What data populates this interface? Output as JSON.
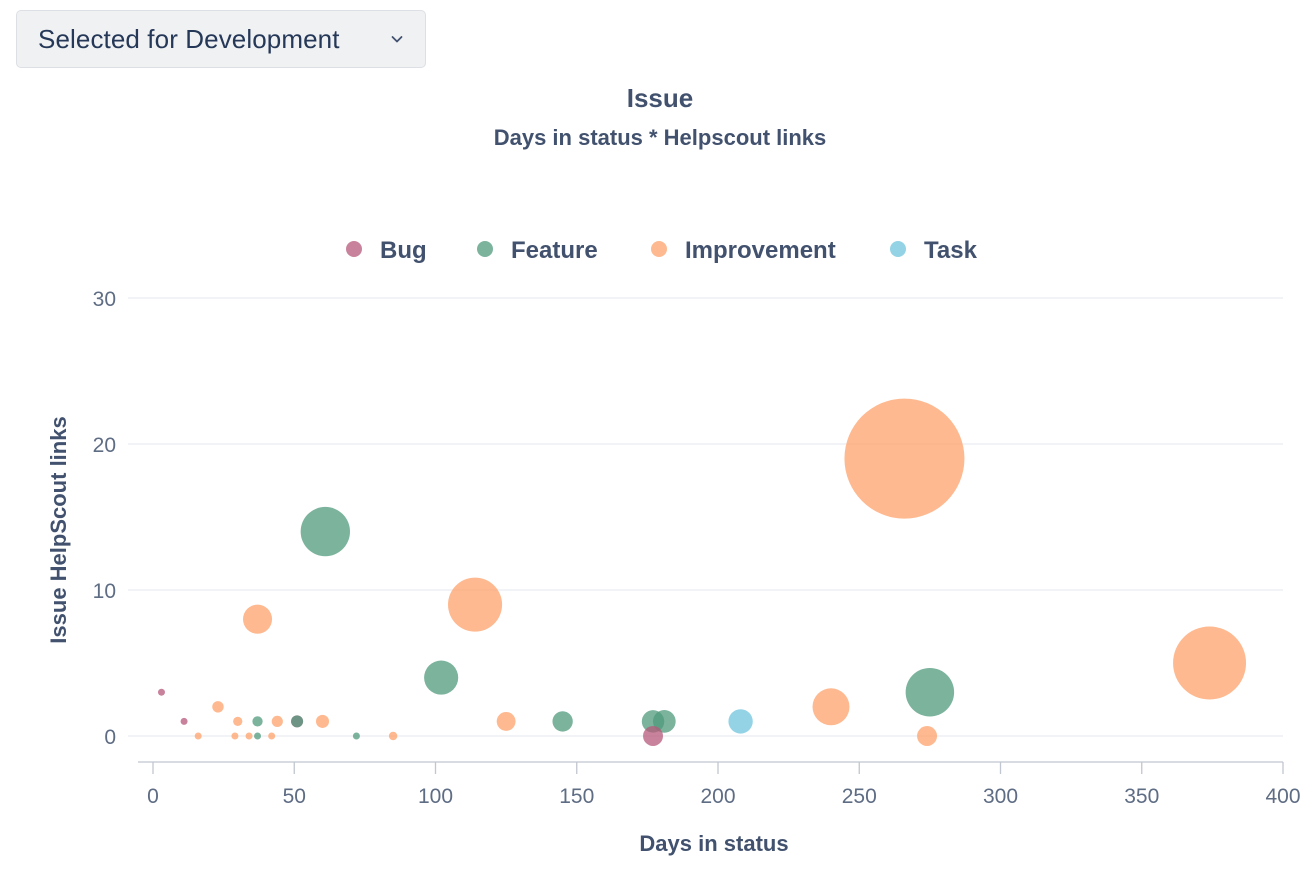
{
  "dropdown": {
    "selected_value": "Selected for Development",
    "icon": "chevron-down-icon"
  },
  "chart_data": {
    "type": "scatter",
    "title": "Issue",
    "subtitle": "Days in status * Helpscout links",
    "xlabel": "Days in status",
    "ylabel": "Issue HelpScout links",
    "xlim": [
      0,
      400
    ],
    "ylim": [
      0,
      30
    ],
    "x_ticks": [
      "0",
      "50",
      "100",
      "150",
      "200",
      "250",
      "300",
      "350",
      "400"
    ],
    "y_ticks": [
      "0",
      "10",
      "20",
      "30"
    ],
    "grid": "horizontal",
    "legend_position": "top-center",
    "bubble_size_metric": "Days in status * Helpscout links",
    "series": [
      {
        "name": "Bug",
        "color": "#b6587a",
        "points": [
          {
            "x": 3,
            "y": 3,
            "size": 9
          },
          {
            "x": 11,
            "y": 1,
            "size": 11
          },
          {
            "x": 51,
            "y": 1,
            "size": 51
          },
          {
            "x": 177,
            "y": 0,
            "size": 140
          }
        ]
      },
      {
        "name": "Feature",
        "color": "#4f9a7c",
        "points": [
          {
            "x": 37,
            "y": 1,
            "size": 37
          },
          {
            "x": 37,
            "y": 0,
            "size": 6
          },
          {
            "x": 51,
            "y": 1,
            "size": 51
          },
          {
            "x": 61,
            "y": 14,
            "size": 854
          },
          {
            "x": 72,
            "y": 0,
            "size": 10
          },
          {
            "x": 102,
            "y": 4,
            "size": 408
          },
          {
            "x": 145,
            "y": 1,
            "size": 145
          },
          {
            "x": 177,
            "y": 1,
            "size": 177
          },
          {
            "x": 181,
            "y": 1,
            "size": 181
          },
          {
            "x": 275,
            "y": 3,
            "size": 825
          }
        ]
      },
      {
        "name": "Improvement",
        "color": "#fea26b",
        "points": [
          {
            "x": 16,
            "y": 0,
            "size": 3
          },
          {
            "x": 23,
            "y": 2,
            "size": 46
          },
          {
            "x": 29,
            "y": 0,
            "size": 4
          },
          {
            "x": 30,
            "y": 1,
            "size": 30
          },
          {
            "x": 34,
            "y": 0,
            "size": 4
          },
          {
            "x": 37,
            "y": 8,
            "size": 296
          },
          {
            "x": 42,
            "y": 0,
            "size": 5
          },
          {
            "x": 44,
            "y": 1,
            "size": 44
          },
          {
            "x": 60,
            "y": 1,
            "size": 60
          },
          {
            "x": 85,
            "y": 0,
            "size": 25
          },
          {
            "x": 114,
            "y": 9,
            "size": 1026
          },
          {
            "x": 125,
            "y": 1,
            "size": 125
          },
          {
            "x": 240,
            "y": 2,
            "size": 480
          },
          {
            "x": 266,
            "y": 19,
            "size": 5054
          },
          {
            "x": 274,
            "y": 0,
            "size": 140
          },
          {
            "x": 374,
            "y": 5,
            "size": 1870
          }
        ]
      },
      {
        "name": "Task",
        "color": "#6fc4dc",
        "points": [
          {
            "x": 208,
            "y": 1,
            "size": 208
          }
        ]
      }
    ]
  }
}
